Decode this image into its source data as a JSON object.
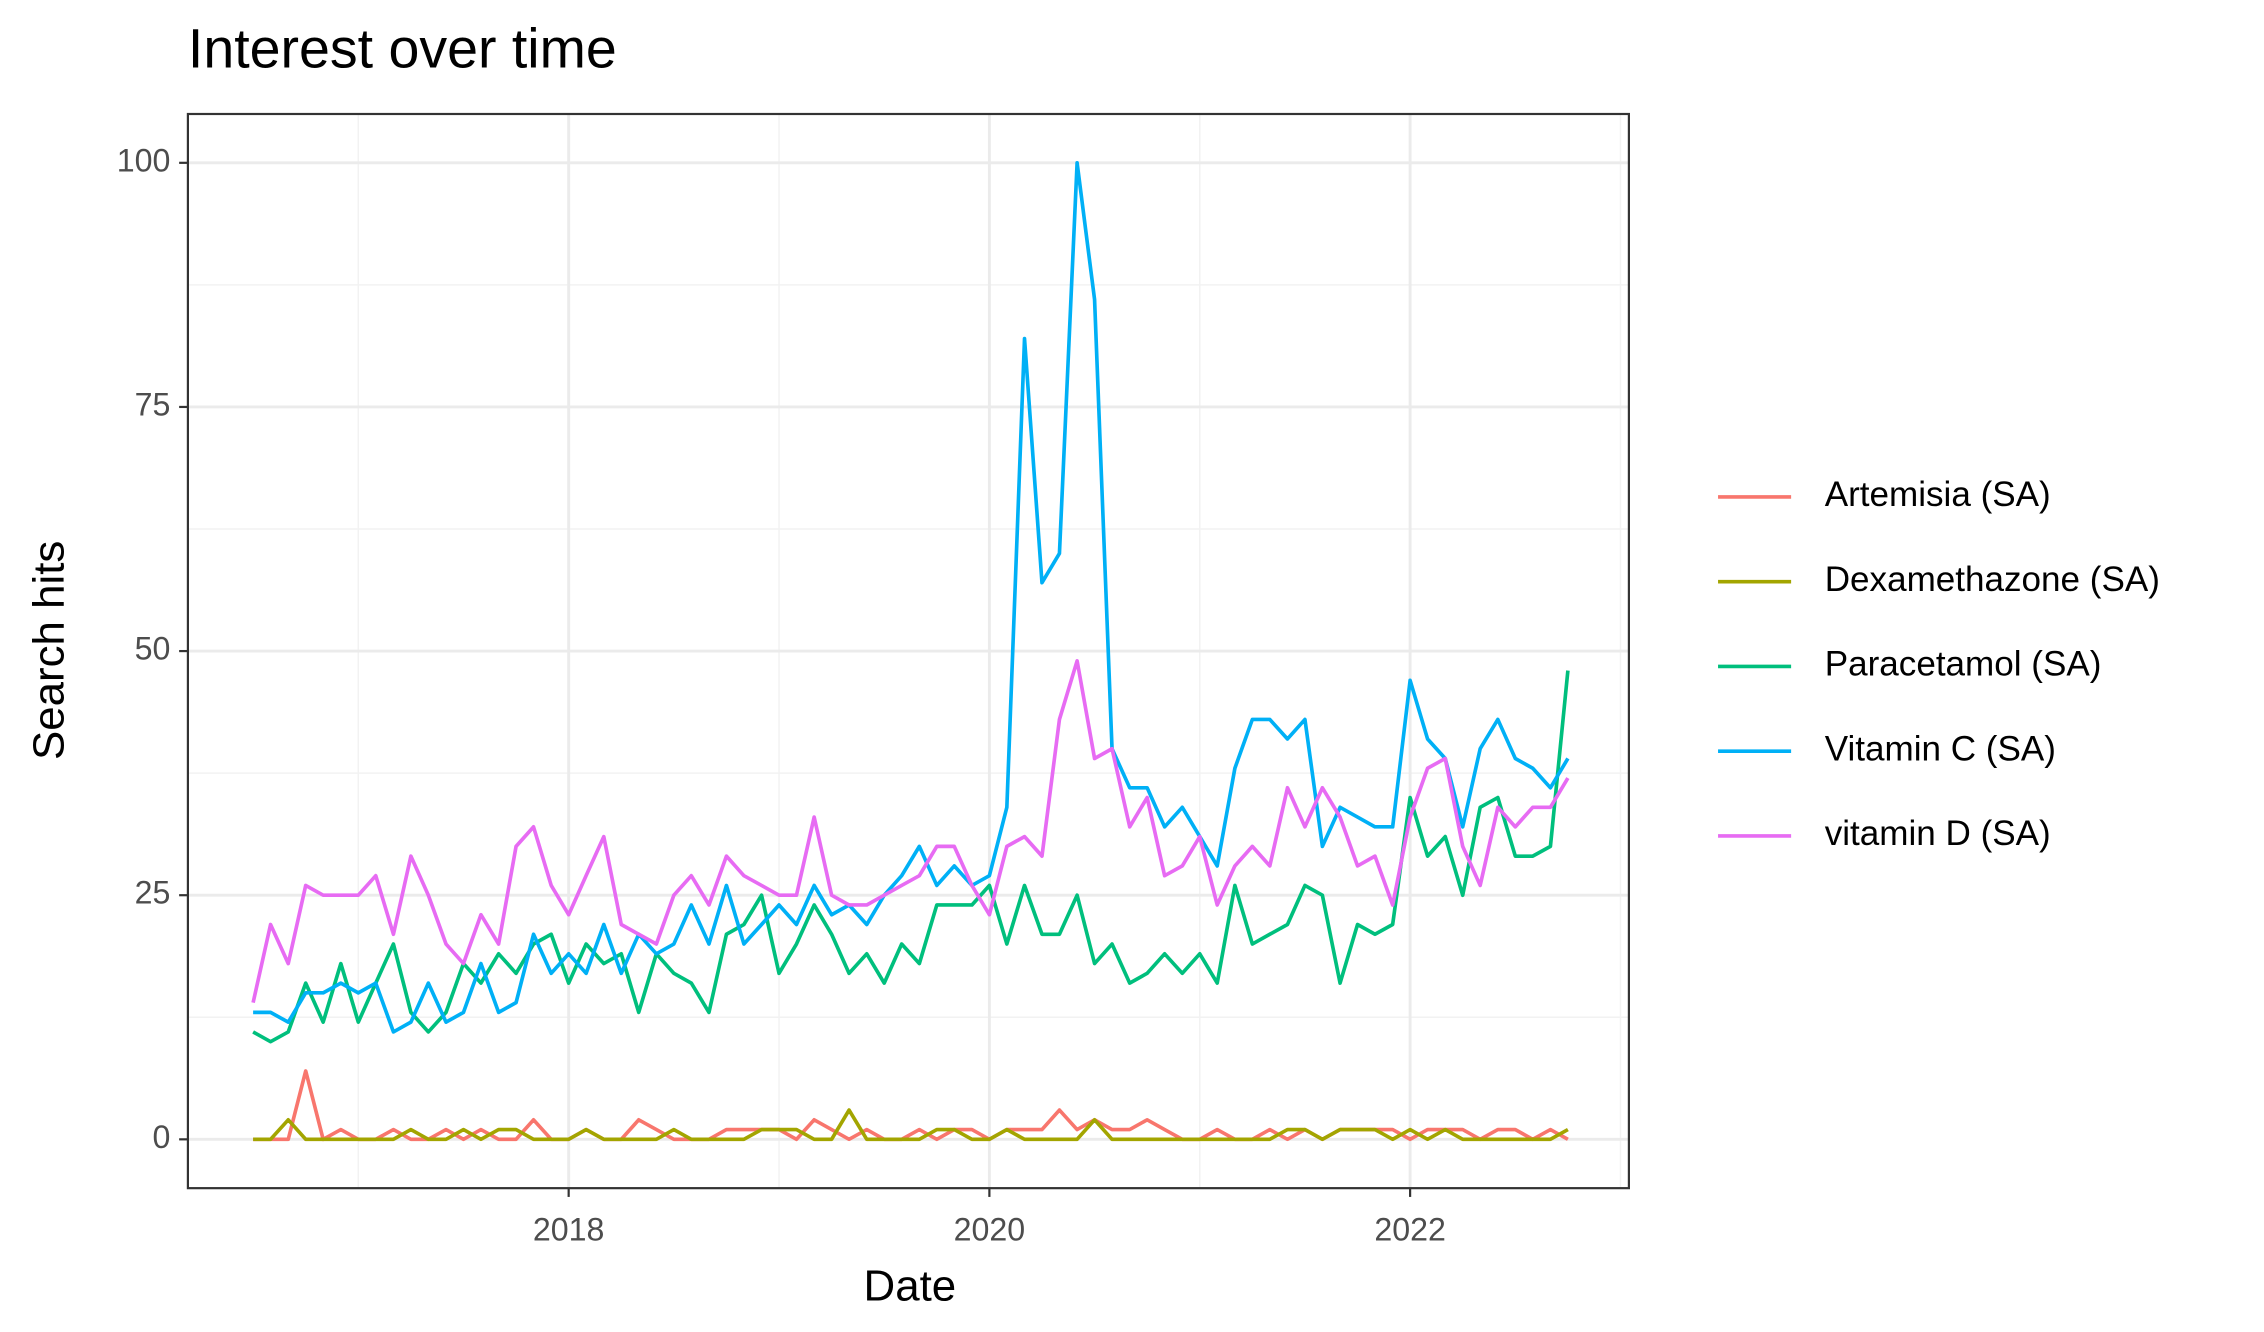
{
  "chart_data": {
    "type": "line",
    "title": "Interest over time",
    "x_label": "Date",
    "y_label": "Search hits",
    "xlim": [
      2016.19,
      2023.04
    ],
    "xticks": [
      2018,
      2020,
      2022
    ],
    "ylim": [
      -5,
      105
    ],
    "yticks": [
      0,
      25,
      50,
      75,
      100
    ],
    "grid": true,
    "legend": "right",
    "x": [
      2016.5,
      2016.583,
      2016.667,
      2016.75,
      2016.833,
      2016.917,
      2017,
      2017.083,
      2017.167,
      2017.25,
      2017.333,
      2017.417,
      2017.5,
      2017.583,
      2017.667,
      2017.75,
      2017.833,
      2017.917,
      2018,
      2018.083,
      2018.167,
      2018.25,
      2018.333,
      2018.417,
      2018.5,
      2018.583,
      2018.667,
      2018.75,
      2018.833,
      2018.917,
      2019,
      2019.083,
      2019.167,
      2019.25,
      2019.333,
      2019.417,
      2019.5,
      2019.583,
      2019.667,
      2019.75,
      2019.833,
      2019.917,
      2020,
      2020.083,
      2020.167,
      2020.25,
      2020.333,
      2020.417,
      2020.5,
      2020.583,
      2020.667,
      2020.75,
      2020.833,
      2020.917,
      2021,
      2021.083,
      2021.167,
      2021.25,
      2021.333,
      2021.417,
      2021.5,
      2021.583,
      2021.667,
      2021.75,
      2021.833,
      2021.917,
      2022,
      2022.083,
      2022.167,
      2022.25,
      2022.333,
      2022.417,
      2022.5,
      2022.583,
      2022.667,
      2022.75
    ],
    "series": [
      {
        "name": "Artemisia (SA)",
        "color": "#F8766D",
        "values": [
          0,
          0,
          0,
          7,
          0,
          1,
          0,
          0,
          1,
          0,
          0,
          1,
          0,
          1,
          0,
          0,
          2,
          0,
          0,
          1,
          0,
          0,
          2,
          1,
          0,
          0,
          0,
          1,
          1,
          1,
          1,
          0,
          2,
          1,
          0,
          1,
          0,
          0,
          1,
          0,
          1,
          1,
          0,
          1,
          1,
          1,
          3,
          1,
          2,
          1,
          1,
          2,
          1,
          0,
          0,
          1,
          0,
          0,
          1,
          0,
          1,
          0,
          1,
          1,
          1,
          1,
          0,
          1,
          1,
          1,
          0,
          1,
          1,
          0,
          1,
          0
        ]
      },
      {
        "name": "Dexamethazone (SA)",
        "color": "#A3A500",
        "values": [
          0,
          0,
          2,
          0,
          0,
          0,
          0,
          0,
          0,
          1,
          0,
          0,
          1,
          0,
          1,
          1,
          0,
          0,
          0,
          1,
          0,
          0,
          0,
          0,
          1,
          0,
          0,
          0,
          0,
          1,
          1,
          1,
          0,
          0,
          3,
          0,
          0,
          0,
          0,
          1,
          1,
          0,
          0,
          1,
          0,
          0,
          0,
          0,
          2,
          0,
          0,
          0,
          0,
          0,
          0,
          0,
          0,
          0,
          0,
          1,
          1,
          0,
          1,
          1,
          1,
          0,
          1,
          0,
          1,
          0,
          0,
          0,
          0,
          0,
          0,
          1
        ]
      },
      {
        "name": "Paracetamol (SA)",
        "color": "#00BF7D",
        "values": [
          11,
          10,
          11,
          16,
          12,
          18,
          12,
          16,
          20,
          13,
          11,
          13,
          18,
          16,
          19,
          17,
          20,
          21,
          16,
          20,
          18,
          19,
          13,
          19,
          17,
          16,
          13,
          21,
          22,
          25,
          17,
          20,
          24,
          21,
          17,
          19,
          16,
          20,
          18,
          24,
          24,
          24,
          26,
          20,
          26,
          21,
          21,
          25,
          18,
          20,
          16,
          17,
          19,
          17,
          19,
          16,
          26,
          20,
          21,
          22,
          26,
          25,
          16,
          22,
          21,
          22,
          35,
          29,
          31,
          25,
          34,
          35,
          29,
          29,
          30,
          48
        ]
      },
      {
        "name": "Vitamin C (SA)",
        "color": "#00B0F6",
        "values": [
          13,
          13,
          12,
          15,
          15,
          16,
          15,
          16,
          11,
          12,
          16,
          12,
          13,
          18,
          13,
          14,
          21,
          17,
          19,
          17,
          22,
          17,
          21,
          19,
          20,
          24,
          20,
          26,
          20,
          22,
          24,
          22,
          26,
          23,
          24,
          22,
          25,
          27,
          30,
          26,
          28,
          26,
          27,
          34,
          82,
          57,
          60,
          100,
          86,
          40,
          36,
          36,
          32,
          34,
          31,
          28,
          38,
          43,
          43,
          41,
          43,
          30,
          34,
          33,
          32,
          32,
          47,
          41,
          39,
          32,
          40,
          43,
          39,
          38,
          36,
          39
        ]
      },
      {
        "name": "vitamin D (SA)",
        "color": "#E76BF3",
        "values": [
          14,
          22,
          18,
          26,
          25,
          25,
          25,
          27,
          21,
          29,
          25,
          20,
          18,
          23,
          20,
          30,
          32,
          26,
          23,
          27,
          31,
          22,
          21,
          20,
          25,
          27,
          24,
          29,
          27,
          26,
          25,
          25,
          33,
          25,
          24,
          24,
          25,
          26,
          27,
          30,
          30,
          26,
          23,
          30,
          31,
          29,
          43,
          49,
          39,
          40,
          32,
          35,
          27,
          28,
          31,
          24,
          28,
          30,
          28,
          36,
          32,
          36,
          33,
          28,
          29,
          24,
          33,
          38,
          39,
          30,
          26,
          34,
          32,
          34,
          34,
          37
        ]
      }
    ]
  }
}
